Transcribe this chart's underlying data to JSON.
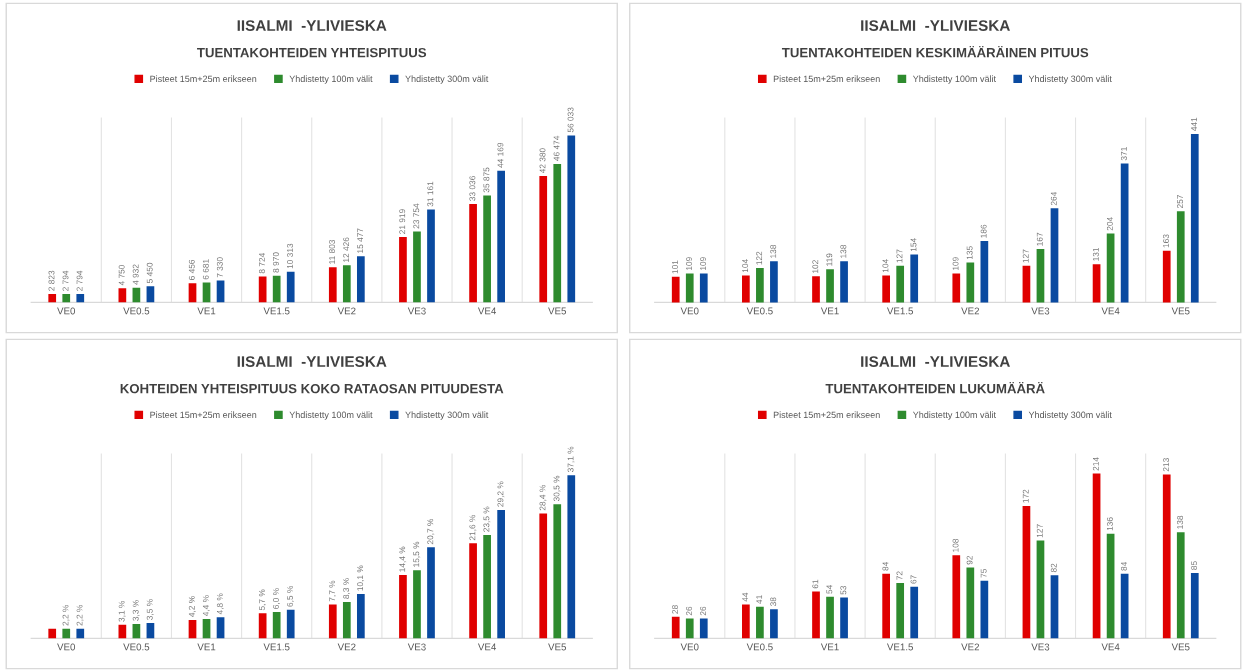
{
  "chart_data": [
    {
      "type": "bar",
      "title": "IISALMI  -YLIVIESKA",
      "subtitle": "TUENTAKOHTEIDEN YHTEISPITUUS",
      "categories": [
        "VE0",
        "VE0.5",
        "VE1",
        "VE1.5",
        "VE2",
        "VE3",
        "VE4",
        "VE5"
      ],
      "ylim": [
        0,
        62000
      ],
      "grid": "x",
      "legend": "top",
      "tick_labels": "x",
      "series": [
        {
          "name": "Pisteet 15m+25m erikseen",
          "color": "#e00000",
          "values": [
            2823,
            4750,
            6456,
            8724,
            11803,
            21919,
            33036,
            42380
          ],
          "value_labels": [
            "2 823",
            "4 750",
            "6 456",
            "8 724",
            "11 803",
            "21 919",
            "33 036",
            "42 380"
          ]
        },
        {
          "name": "Yhdistetty 100m välit",
          "color": "#2e8b2e",
          "values": [
            2794,
            4932,
            6681,
            8970,
            12426,
            23754,
            35875,
            46474
          ],
          "value_labels": [
            "2 794",
            "4 932",
            "6 681",
            "8 970",
            "12 426",
            "23 754",
            "35 875",
            "46 474"
          ]
        },
        {
          "name": "Yhdistetty 300m välit",
          "color": "#0a4aa0",
          "values": [
            2794,
            5450,
            7330,
            10313,
            15477,
            31161,
            44169,
            56033
          ],
          "value_labels": [
            "2 794",
            "5 450",
            "7 330",
            "10 313",
            "15 477",
            "31 161",
            "44 169",
            "56 033"
          ]
        }
      ]
    },
    {
      "type": "bar",
      "title": "IISALMI  -YLIVIESKA",
      "subtitle": "TUENTAKOHTEIDEN KESKIMÄÄRÄINEN PITUUS",
      "categories": [
        "VE0",
        "VE0.5",
        "VE1",
        "VE1.5",
        "VE2",
        "VE3",
        "VE4",
        "VE5"
      ],
      "ylim": [
        40,
        480
      ],
      "grid": "x",
      "legend": "top",
      "tick_labels": "x",
      "series": [
        {
          "name": "Pisteet 15m+25m erikseen",
          "color": "#e00000",
          "values": [
            101,
            104,
            102,
            104,
            109,
            127,
            131,
            163
          ],
          "value_labels": [
            "101",
            "104",
            "102",
            "104",
            "109",
            "127",
            "131",
            "163"
          ]
        },
        {
          "name": "Yhdistetty 100m välit",
          "color": "#2e8b2e",
          "values": [
            109,
            122,
            119,
            127,
            135,
            167,
            204,
            257
          ],
          "value_labels": [
            "109",
            "122",
            "119",
            "127",
            "135",
            "167",
            "204",
            "257"
          ]
        },
        {
          "name": "Yhdistetty 300m välit",
          "color": "#0a4aa0",
          "values": [
            109,
            138,
            138,
            154,
            186,
            264,
            371,
            441
          ],
          "value_labels": [
            "109",
            "138",
            "138",
            "154",
            "186",
            "264",
            "371",
            "441"
          ]
        }
      ]
    },
    {
      "type": "bar",
      "title": "IISALMI  -YLIVIESKA",
      "subtitle": "KOHTEIDEN YHTEISPITUUS KOKO RATAOSAN PITUUDESTA",
      "categories": [
        "VE0",
        "VE0.5",
        "VE1",
        "VE1.5",
        "VE2",
        "VE3",
        "VE4",
        "VE5"
      ],
      "ylim": [
        0,
        42
      ],
      "grid": "x",
      "legend": "top",
      "tick_labels": "x",
      "series": [
        {
          "name": "Pisteet 15m+25m erikseen",
          "color": "#e00000",
          "values": [
            2.2,
            3.1,
            4.2,
            5.7,
            7.7,
            14.4,
            21.6,
            28.4
          ],
          "value_labels": [
            null,
            "3,1 %",
            "4,2 %",
            "5,7 %",
            "7,7 %",
            "14,4 %",
            "21,6 %",
            "28,4 %"
          ]
        },
        {
          "name": "Yhdistetty 100m välit",
          "color": "#2e8b2e",
          "values": [
            2.2,
            3.3,
            4.4,
            6.0,
            8.3,
            15.5,
            23.5,
            30.5
          ],
          "value_labels": [
            "2,2 %",
            "3,3 %",
            "4,4 %",
            "6,0 %",
            "8,3 %",
            "15,5 %",
            "23,5 %",
            "30,5 %"
          ]
        },
        {
          "name": "Yhdistetty 300m välit",
          "color": "#0a4aa0",
          "values": [
            2.2,
            3.5,
            4.8,
            6.5,
            10.1,
            20.7,
            29.2,
            37.1
          ],
          "value_labels": [
            "2,2 %",
            "3,5 %",
            "4,8 %",
            "6,5 %",
            "10,1 %",
            "20,7 %",
            "29,2 %",
            "37,1 %"
          ]
        }
      ]
    },
    {
      "type": "bar",
      "title": "IISALMI  -YLIVIESKA",
      "subtitle": "TUENTAKOHTEIDEN LUKUMÄÄRÄ",
      "categories": [
        "VE0",
        "VE0.5",
        "VE1",
        "VE1.5",
        "VE2",
        "VE3",
        "VE4",
        "VE5"
      ],
      "ylim": [
        0,
        240
      ],
      "grid": "x",
      "legend": "top",
      "tick_labels": "x",
      "series": [
        {
          "name": "Pisteet 15m+25m erikseen",
          "color": "#e00000",
          "values": [
            28,
            44,
            61,
            84,
            108,
            172,
            214,
            213
          ],
          "value_labels": [
            "28",
            "44",
            "61",
            "84",
            "108",
            "172",
            "214",
            "213"
          ]
        },
        {
          "name": "Yhdistetty 100m välit",
          "color": "#2e8b2e",
          "values": [
            26,
            41,
            54,
            72,
            92,
            127,
            136,
            138
          ],
          "value_labels": [
            "26",
            "41",
            "54",
            "72",
            "92",
            "127",
            "136",
            "138"
          ]
        },
        {
          "name": "Yhdistetty 300m välit",
          "color": "#0a4aa0",
          "values": [
            26,
            38,
            53,
            67,
            75,
            82,
            84,
            85
          ],
          "value_labels": [
            "26",
            "38",
            "53",
            "67",
            "75",
            "82",
            "84",
            "85"
          ]
        }
      ]
    }
  ]
}
